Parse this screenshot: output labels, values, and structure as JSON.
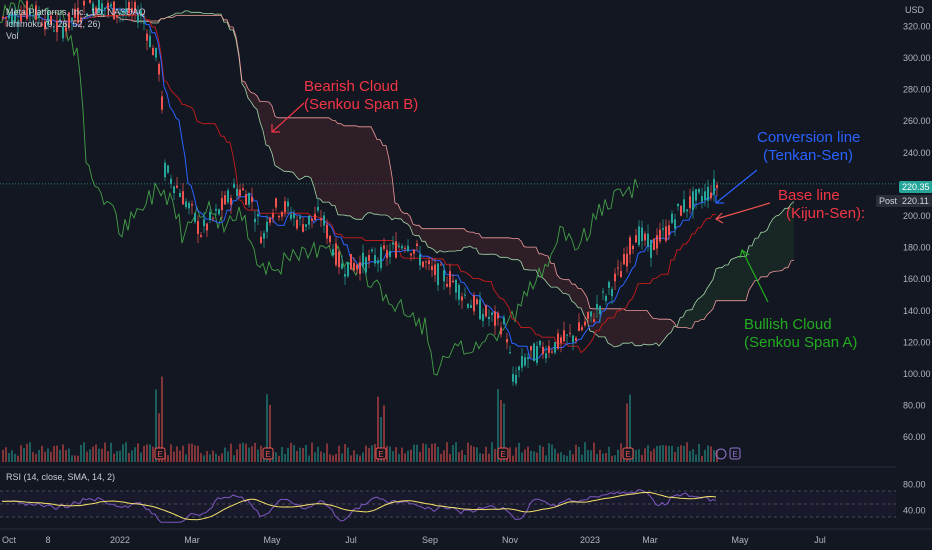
{
  "legend": {
    "symbol": "Meta Platforms, Inc., 1D, NASDAQ",
    "indicator": "Ichimoku (9, 26, 52, 26)",
    "volume": "Vol"
  },
  "currency": "USD",
  "rsi_label": "RSI (14, close, SMA, 14, 2)",
  "price_tags": {
    "last": "220.35",
    "post_label": "Post",
    "post": "220.11"
  },
  "annotations": {
    "bearish_line1": "Bearish Cloud",
    "bearish_line2": "(Senkou Span B)",
    "conversion_line1": "Conversion line",
    "conversion_line2": "(Tenkan-Sen)",
    "base_line1": "Base line",
    "base_line2": "(Kijun-Sen):",
    "bullish_line1": "Bullish Cloud",
    "bullish_line2": "(Senkou Span A)"
  },
  "earnings_marker": "E",
  "colors": {
    "background": "#131722",
    "up": "#26a69a",
    "down": "#ef5350",
    "conversion": "#2962ff",
    "base": "#b71c1c",
    "lagging": "#43a047",
    "span_a": "#a5d6a7",
    "span_b": "#ef9a9a",
    "bearish_note": "#f23645",
    "conversion_note": "#2962ff",
    "bullish_note": "#22ab20",
    "rsi": "#7e57c2",
    "rsi_ma": "#f7e26b"
  },
  "chart_data": [
    {
      "type": "line",
      "title": "Meta Platforms, Inc., 1D, NASDAQ",
      "y_axis_ticks": [
        60,
        80,
        100,
        120,
        140,
        160,
        180,
        200,
        220,
        240,
        260,
        280,
        300,
        320
      ],
      "x_axis_ticks": [
        "Oct",
        "8",
        "2022",
        "Mar",
        "May",
        "Jul",
        "Sep",
        "Nov",
        "2023",
        "Mar",
        "May",
        "Jul"
      ],
      "ylim": [
        55,
        340
      ],
      "grid": false,
      "series": [
        {
          "name": "Close",
          "x": [
            "2021-10",
            "2021-11",
            "2021-12",
            "2022-01",
            "2022-02",
            "2022-03",
            "2022-04",
            "2022-05",
            "2022-06",
            "2022-07",
            "2022-08",
            "2022-09",
            "2022-10",
            "2022-11",
            "2022-12",
            "2023-01",
            "2023-02",
            "2023-03",
            "2023-04"
          ],
          "values": [
            325,
            335,
            330,
            320,
            215,
            205,
            200,
            195,
            165,
            170,
            165,
            140,
            100,
            120,
            120,
            150,
            175,
            210,
            220
          ]
        }
      ],
      "last_price": 220.35,
      "post_market": 220.11
    },
    {
      "type": "line",
      "title": "RSI (14, close, SMA, 14, 2)",
      "y_axis_ticks": [
        40,
        80
      ],
      "ylim": [
        20,
        90
      ]
    }
  ]
}
